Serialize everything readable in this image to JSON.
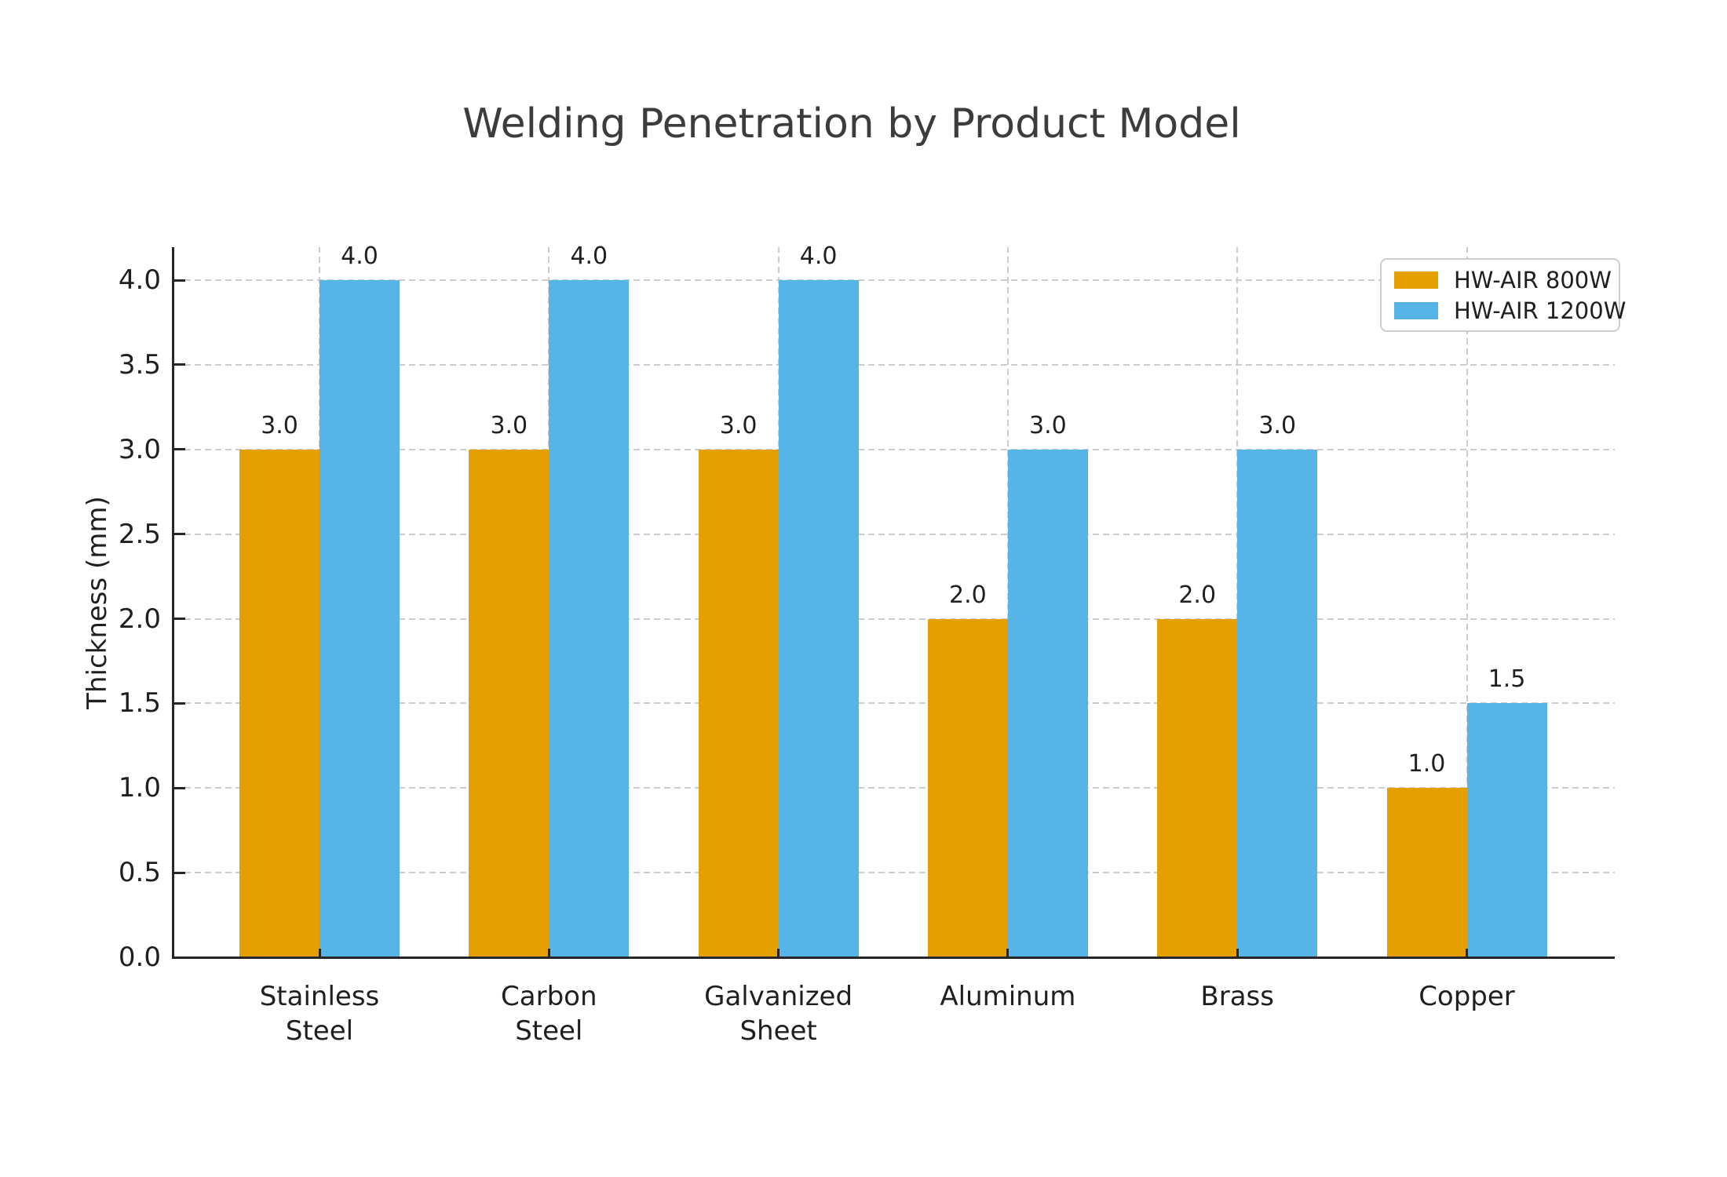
{
  "chart_data": {
    "type": "bar",
    "title": "Welding Penetration by Product Model",
    "xlabel": "",
    "ylabel": "Thickness (mm)",
    "categories": [
      "Stainless\nSteel",
      "Carbon\nSteel",
      "Galvanized\nSheet",
      "Aluminum",
      "Brass",
      "Copper"
    ],
    "series": [
      {
        "name": "HW-AIR 800W",
        "color": "#E69F00",
        "values": [
          3.0,
          3.0,
          3.0,
          2.0,
          2.0,
          1.0
        ]
      },
      {
        "name": "HW-AIR 1200W",
        "color": "#56B4E9",
        "values": [
          4.0,
          4.0,
          4.0,
          3.0,
          3.0,
          1.5
        ]
      }
    ],
    "yticks": [
      0.0,
      0.5,
      1.0,
      1.5,
      2.0,
      2.5,
      3.0,
      3.5,
      4.0
    ],
    "ylim": [
      0,
      4.2
    ],
    "grid": true,
    "grid_style": "dashed",
    "grid_color": "#cccccc",
    "text_color": "#1f1f1f",
    "bar_value_label_format": "one-decimal",
    "legend_position": "upper right"
  }
}
